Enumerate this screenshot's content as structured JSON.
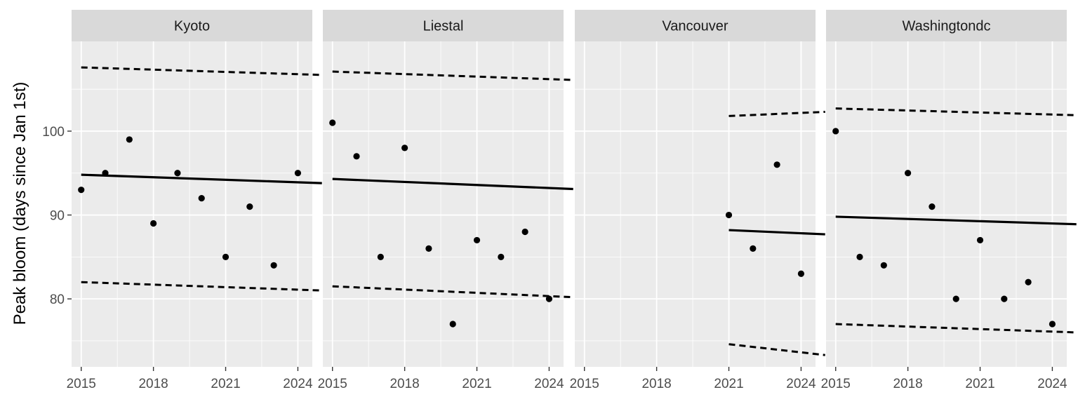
{
  "chart_data": {
    "type": "scatter",
    "ylabel": "Peak bloom (days since Jan 1st)",
    "xlabel": "",
    "xlim": [
      2014.6,
      2024.6
    ],
    "ylim": [
      71.9,
      110.7
    ],
    "x_ticks": [
      2015,
      2018,
      2021,
      2024
    ],
    "y_ticks": [
      80,
      90,
      100
    ],
    "grid": true,
    "legend": "none",
    "colors": {
      "panel_bg": "#ebebeb",
      "strip_bg": "#d9d9d9",
      "grid": "#ffffff",
      "points": "#000000",
      "lines": "#000000"
    },
    "panels": [
      {
        "name": "Kyoto",
        "points": [
          [
            2015,
            93
          ],
          [
            2016,
            95
          ],
          [
            2017,
            99
          ],
          [
            2018,
            89
          ],
          [
            2019,
            95
          ],
          [
            2020,
            92
          ],
          [
            2021,
            85
          ],
          [
            2022,
            91
          ],
          [
            2023,
            84
          ],
          [
            2024,
            95
          ]
        ],
        "fit": {
          "x": [
            2015,
            2025
          ],
          "y": [
            94.8,
            93.8
          ]
        },
        "upper": {
          "x": [
            2015,
            2025
          ],
          "y": [
            107.6,
            106.7
          ]
        },
        "lower": {
          "x": [
            2015,
            2025
          ],
          "y": [
            82.0,
            81.0
          ]
        }
      },
      {
        "name": "Liestal",
        "points": [
          [
            2015,
            101
          ],
          [
            2016,
            97
          ],
          [
            2017,
            85
          ],
          [
            2018,
            98
          ],
          [
            2019,
            86
          ],
          [
            2020,
            77
          ],
          [
            2021,
            87
          ],
          [
            2022,
            85
          ],
          [
            2023,
            88
          ],
          [
            2024,
            80
          ]
        ],
        "fit": {
          "x": [
            2015,
            2025
          ],
          "y": [
            94.3,
            93.1
          ]
        },
        "upper": {
          "x": [
            2015,
            2025
          ],
          "y": [
            107.1,
            106.1
          ]
        },
        "lower": {
          "x": [
            2015,
            2025
          ],
          "y": [
            81.5,
            80.2
          ]
        }
      },
      {
        "name": "Vancouver",
        "points": [
          [
            2021,
            90
          ],
          [
            2022,
            86
          ],
          [
            2023,
            96
          ],
          [
            2024,
            83
          ]
        ],
        "fit": {
          "x": [
            2021,
            2025
          ],
          "y": [
            88.2,
            87.7
          ]
        },
        "upper": {
          "x": [
            2021,
            2025
          ],
          "y": [
            101.8,
            102.3
          ]
        },
        "lower": {
          "x": [
            2021,
            2025
          ],
          "y": [
            74.6,
            73.3
          ]
        }
      },
      {
        "name": "Washingtondc",
        "points": [
          [
            2015,
            100
          ],
          [
            2016,
            85
          ],
          [
            2017,
            84
          ],
          [
            2018,
            95
          ],
          [
            2019,
            91
          ],
          [
            2020,
            80
          ],
          [
            2021,
            87
          ],
          [
            2022,
            80
          ],
          [
            2023,
            82
          ],
          [
            2024,
            77
          ]
        ],
        "fit": {
          "x": [
            2015,
            2025
          ],
          "y": [
            89.8,
            88.9
          ]
        },
        "upper": {
          "x": [
            2015,
            2025
          ],
          "y": [
            102.7,
            101.9
          ]
        },
        "lower": {
          "x": [
            2015,
            2025
          ],
          "y": [
            77.0,
            76.0
          ]
        }
      }
    ]
  }
}
